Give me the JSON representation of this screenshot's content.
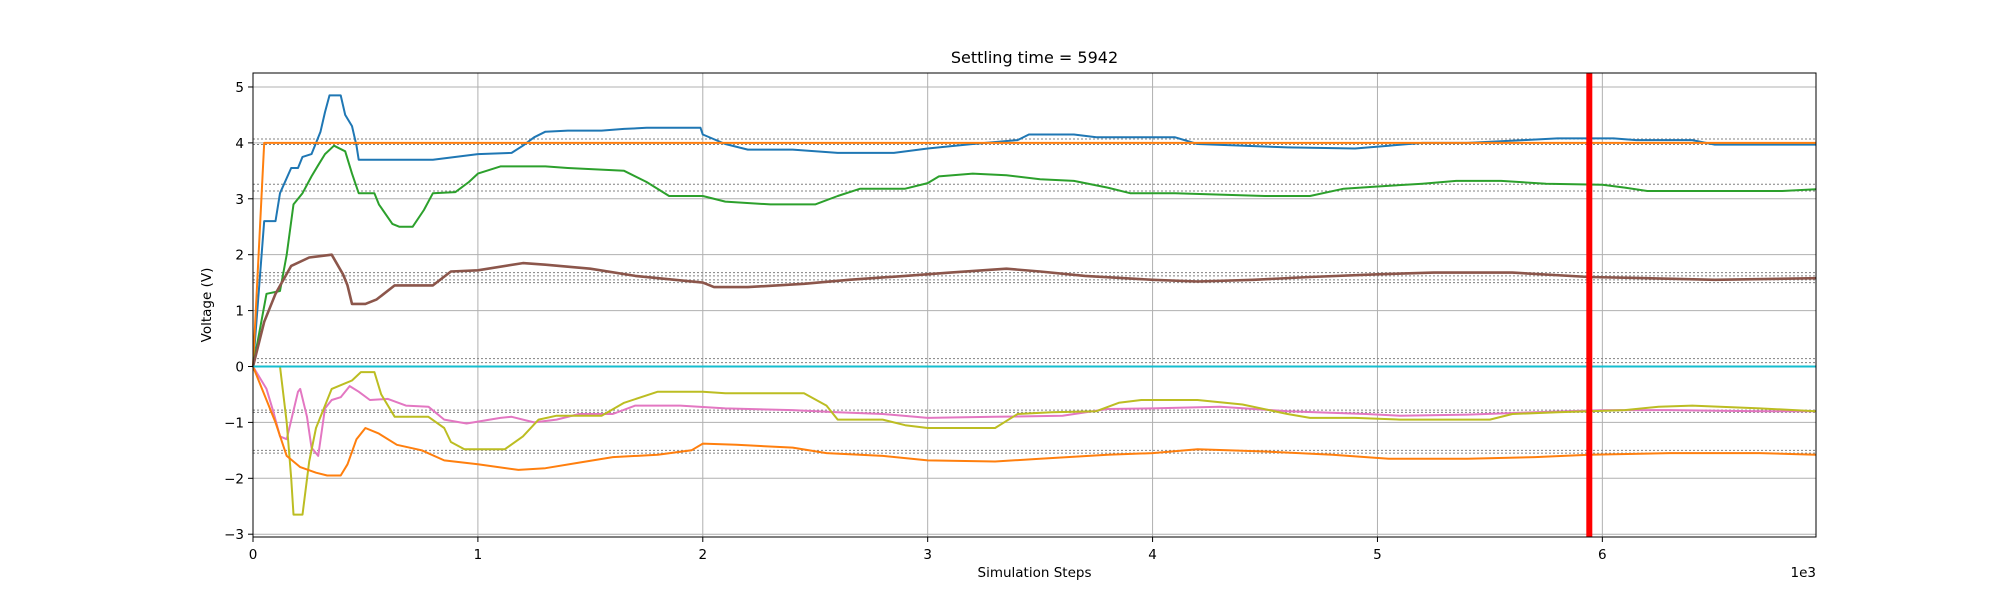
{
  "chart_data": {
    "type": "line",
    "title": "Settling time = 5942",
    "xlabel": "Simulation Steps",
    "ylabel": "Voltage (V)",
    "x_offset_text": "1e3",
    "xlim": [
      0,
      6950
    ],
    "ylim": [
      -3.05,
      5.25
    ],
    "xticks": [
      0,
      1000,
      2000,
      3000,
      4000,
      5000,
      6000
    ],
    "xtick_labels": [
      "0",
      "1",
      "2",
      "3",
      "4",
      "5",
      "6"
    ],
    "yticks": [
      -3,
      -2,
      -1,
      0,
      1,
      2,
      3,
      4,
      5
    ],
    "ytick_labels": [
      "−3",
      "−2",
      "−1",
      "0",
      "1",
      "2",
      "3",
      "4",
      "5"
    ],
    "grid": true,
    "settling_marker": {
      "x": 5942,
      "color": "#ff0000"
    },
    "reference_levels": [
      4.07,
      3.97,
      3.26,
      3.14,
      1.68,
      1.62,
      1.55,
      1.5,
      0.14,
      0.07,
      -0.78,
      -0.82,
      -1.5,
      -1.55
    ],
    "colors": {
      "blue": "#1f77b4",
      "orange": "#ff7f0e",
      "green": "#2ca02c",
      "brown": "#8c564b",
      "pink": "#e377c2",
      "olive": "#bcbd22",
      "cyan": "#17becf",
      "grid": "#b0b0b0",
      "ref": "#808080"
    },
    "series": [
      {
        "color": "#1f77b4",
        "points": [
          [
            0,
            0
          ],
          [
            50,
            2.6
          ],
          [
            100,
            2.6
          ],
          [
            120,
            3.1
          ],
          [
            170,
            3.55
          ],
          [
            200,
            3.55
          ],
          [
            220,
            3.75
          ],
          [
            260,
            3.8
          ],
          [
            300,
            4.2
          ],
          [
            320,
            4.55
          ],
          [
            340,
            4.85
          ],
          [
            390,
            4.85
          ],
          [
            410,
            4.5
          ],
          [
            440,
            4.3
          ],
          [
            460,
            3.95
          ],
          [
            470,
            3.7
          ],
          [
            800,
            3.7
          ],
          [
            1000,
            3.8
          ],
          [
            1150,
            3.82
          ],
          [
            1200,
            3.95
          ],
          [
            1250,
            4.1
          ],
          [
            1300,
            4.2
          ],
          [
            1400,
            4.22
          ],
          [
            1550,
            4.22
          ],
          [
            1650,
            4.25
          ],
          [
            1750,
            4.27
          ],
          [
            1990,
            4.27
          ],
          [
            2000,
            4.15
          ],
          [
            2100,
            3.98
          ],
          [
            2200,
            3.88
          ],
          [
            2400,
            3.88
          ],
          [
            2600,
            3.82
          ],
          [
            2850,
            3.82
          ],
          [
            3000,
            3.9
          ],
          [
            3200,
            3.98
          ],
          [
            3400,
            4.05
          ],
          [
            3450,
            4.15
          ],
          [
            3650,
            4.15
          ],
          [
            3750,
            4.1
          ],
          [
            4100,
            4.1
          ],
          [
            4200,
            3.98
          ],
          [
            4600,
            3.92
          ],
          [
            4900,
            3.9
          ],
          [
            5050,
            3.95
          ],
          [
            5200,
            4.0
          ],
          [
            5400,
            4.0
          ],
          [
            5650,
            4.05
          ],
          [
            5800,
            4.08
          ],
          [
            6050,
            4.08
          ],
          [
            6150,
            4.05
          ],
          [
            6400,
            4.05
          ],
          [
            6500,
            3.97
          ],
          [
            6950,
            3.97
          ]
        ]
      },
      {
        "color": "#ff7f0e",
        "points": [
          [
            0,
            0
          ],
          [
            50,
            4.0
          ],
          [
            6950,
            4.0
          ]
        ]
      },
      {
        "color": "#2ca02c",
        "points": [
          [
            0,
            0
          ],
          [
            60,
            1.3
          ],
          [
            120,
            1.35
          ],
          [
            150,
            2.0
          ],
          [
            180,
            2.9
          ],
          [
            220,
            3.1
          ],
          [
            260,
            3.4
          ],
          [
            290,
            3.6
          ],
          [
            320,
            3.8
          ],
          [
            360,
            3.95
          ],
          [
            410,
            3.85
          ],
          [
            440,
            3.45
          ],
          [
            470,
            3.1
          ],
          [
            540,
            3.1
          ],
          [
            560,
            2.9
          ],
          [
            620,
            2.55
          ],
          [
            650,
            2.5
          ],
          [
            710,
            2.5
          ],
          [
            760,
            2.8
          ],
          [
            800,
            3.1
          ],
          [
            900,
            3.12
          ],
          [
            960,
            3.3
          ],
          [
            1000,
            3.45
          ],
          [
            1100,
            3.58
          ],
          [
            1300,
            3.58
          ],
          [
            1400,
            3.55
          ],
          [
            1650,
            3.5
          ],
          [
            1750,
            3.3
          ],
          [
            1850,
            3.05
          ],
          [
            2000,
            3.05
          ],
          [
            2100,
            2.95
          ],
          [
            2300,
            2.9
          ],
          [
            2500,
            2.9
          ],
          [
            2600,
            3.05
          ],
          [
            2700,
            3.18
          ],
          [
            2900,
            3.18
          ],
          [
            3000,
            3.28
          ],
          [
            3050,
            3.4
          ],
          [
            3200,
            3.45
          ],
          [
            3350,
            3.42
          ],
          [
            3500,
            3.35
          ],
          [
            3650,
            3.32
          ],
          [
            3800,
            3.2
          ],
          [
            3900,
            3.1
          ],
          [
            4100,
            3.1
          ],
          [
            4500,
            3.05
          ],
          [
            4700,
            3.05
          ],
          [
            4850,
            3.18
          ],
          [
            5000,
            3.22
          ],
          [
            5200,
            3.27
          ],
          [
            5350,
            3.32
          ],
          [
            5550,
            3.32
          ],
          [
            5750,
            3.27
          ],
          [
            6000,
            3.25
          ],
          [
            6100,
            3.2
          ],
          [
            6200,
            3.14
          ],
          [
            6500,
            3.14
          ],
          [
            6800,
            3.14
          ],
          [
            6950,
            3.17
          ]
        ]
      },
      {
        "color": "#8c564b",
        "points": [
          [
            0,
            0
          ],
          [
            50,
            0.8
          ],
          [
            100,
            1.3
          ],
          [
            170,
            1.8
          ],
          [
            250,
            1.95
          ],
          [
            310,
            1.98
          ],
          [
            350,
            2.0
          ],
          [
            400,
            1.65
          ],
          [
            420,
            1.45
          ],
          [
            440,
            1.12
          ],
          [
            500,
            1.12
          ],
          [
            550,
            1.2
          ],
          [
            630,
            1.45
          ],
          [
            800,
            1.45
          ],
          [
            880,
            1.7
          ],
          [
            1000,
            1.72
          ],
          [
            1200,
            1.85
          ],
          [
            1300,
            1.82
          ],
          [
            1500,
            1.75
          ],
          [
            1700,
            1.62
          ],
          [
            2000,
            1.5
          ],
          [
            2050,
            1.42
          ],
          [
            2200,
            1.42
          ],
          [
            2450,
            1.48
          ],
          [
            2650,
            1.55
          ],
          [
            2900,
            1.62
          ],
          [
            3100,
            1.68
          ],
          [
            3350,
            1.75
          ],
          [
            3500,
            1.7
          ],
          [
            3700,
            1.62
          ],
          [
            4000,
            1.55
          ],
          [
            4200,
            1.52
          ],
          [
            4450,
            1.55
          ],
          [
            4700,
            1.6
          ],
          [
            5000,
            1.65
          ],
          [
            5250,
            1.68
          ],
          [
            5600,
            1.68
          ],
          [
            5942,
            1.6
          ],
          [
            6200,
            1.58
          ],
          [
            6500,
            1.55
          ],
          [
            6950,
            1.58
          ]
        ]
      },
      {
        "color": "#e377c2",
        "points": [
          [
            0,
            0
          ],
          [
            60,
            -0.4
          ],
          [
            90,
            -0.8
          ],
          [
            120,
            -1.25
          ],
          [
            150,
            -1.3
          ],
          [
            200,
            -0.45
          ],
          [
            210,
            -0.4
          ],
          [
            240,
            -0.9
          ],
          [
            260,
            -1.45
          ],
          [
            290,
            -1.6
          ],
          [
            320,
            -0.75
          ],
          [
            350,
            -0.6
          ],
          [
            390,
            -0.55
          ],
          [
            430,
            -0.35
          ],
          [
            470,
            -0.45
          ],
          [
            520,
            -0.6
          ],
          [
            600,
            -0.58
          ],
          [
            680,
            -0.7
          ],
          [
            780,
            -0.72
          ],
          [
            850,
            -0.95
          ],
          [
            950,
            -1.02
          ],
          [
            1100,
            -0.92
          ],
          [
            1150,
            -0.9
          ],
          [
            1250,
            -1.0
          ],
          [
            1350,
            -0.95
          ],
          [
            1450,
            -0.85
          ],
          [
            1600,
            -0.85
          ],
          [
            1700,
            -0.7
          ],
          [
            1900,
            -0.7
          ],
          [
            2100,
            -0.75
          ],
          [
            2400,
            -0.78
          ],
          [
            2600,
            -0.82
          ],
          [
            2800,
            -0.85
          ],
          [
            3000,
            -0.92
          ],
          [
            3300,
            -0.9
          ],
          [
            3600,
            -0.88
          ],
          [
            3800,
            -0.76
          ],
          [
            4000,
            -0.75
          ],
          [
            4300,
            -0.72
          ],
          [
            4600,
            -0.8
          ],
          [
            4950,
            -0.85
          ],
          [
            5100,
            -0.88
          ],
          [
            5400,
            -0.86
          ],
          [
            5700,
            -0.82
          ],
          [
            6000,
            -0.78
          ],
          [
            6300,
            -0.78
          ],
          [
            6700,
            -0.8
          ],
          [
            6950,
            -0.8
          ]
        ]
      },
      {
        "color": "#bcbd22",
        "points": [
          [
            0,
            0
          ],
          [
            120,
            0
          ],
          [
            150,
            -1.0
          ],
          [
            170,
            -2.0
          ],
          [
            180,
            -2.65
          ],
          [
            220,
            -2.65
          ],
          [
            250,
            -1.7
          ],
          [
            280,
            -1.1
          ],
          [
            320,
            -0.7
          ],
          [
            350,
            -0.4
          ],
          [
            410,
            -0.3
          ],
          [
            440,
            -0.25
          ],
          [
            480,
            -0.1
          ],
          [
            540,
            -0.1
          ],
          [
            570,
            -0.5
          ],
          [
            630,
            -0.9
          ],
          [
            780,
            -0.9
          ],
          [
            850,
            -1.1
          ],
          [
            880,
            -1.35
          ],
          [
            940,
            -1.48
          ],
          [
            1120,
            -1.48
          ],
          [
            1200,
            -1.25
          ],
          [
            1270,
            -0.95
          ],
          [
            1350,
            -0.88
          ],
          [
            1550,
            -0.88
          ],
          [
            1650,
            -0.65
          ],
          [
            1800,
            -0.45
          ],
          [
            2000,
            -0.45
          ],
          [
            2100,
            -0.48
          ],
          [
            2450,
            -0.48
          ],
          [
            2550,
            -0.7
          ],
          [
            2600,
            -0.95
          ],
          [
            2800,
            -0.95
          ],
          [
            2900,
            -1.05
          ],
          [
            3000,
            -1.1
          ],
          [
            3300,
            -1.1
          ],
          [
            3400,
            -0.85
          ],
          [
            3550,
            -0.82
          ],
          [
            3750,
            -0.8
          ],
          [
            3850,
            -0.65
          ],
          [
            3950,
            -0.6
          ],
          [
            4200,
            -0.6
          ],
          [
            4400,
            -0.68
          ],
          [
            4600,
            -0.85
          ],
          [
            4700,
            -0.92
          ],
          [
            4900,
            -0.92
          ],
          [
            5100,
            -0.95
          ],
          [
            5500,
            -0.95
          ],
          [
            5600,
            -0.85
          ],
          [
            5800,
            -0.82
          ],
          [
            6100,
            -0.78
          ],
          [
            6250,
            -0.72
          ],
          [
            6400,
            -0.7
          ],
          [
            6700,
            -0.75
          ],
          [
            6950,
            -0.8
          ]
        ]
      },
      {
        "color": "#ff7f0e",
        "points": [
          [
            0,
            0
          ],
          [
            60,
            -0.6
          ],
          [
            100,
            -1.0
          ],
          [
            150,
            -1.6
          ],
          [
            210,
            -1.8
          ],
          [
            280,
            -1.9
          ],
          [
            330,
            -1.95
          ],
          [
            390,
            -1.95
          ],
          [
            420,
            -1.75
          ],
          [
            460,
            -1.3
          ],
          [
            500,
            -1.1
          ],
          [
            560,
            -1.2
          ],
          [
            640,
            -1.4
          ],
          [
            750,
            -1.5
          ],
          [
            850,
            -1.68
          ],
          [
            1000,
            -1.75
          ],
          [
            1180,
            -1.85
          ],
          [
            1300,
            -1.82
          ],
          [
            1450,
            -1.72
          ],
          [
            1600,
            -1.62
          ],
          [
            1800,
            -1.58
          ],
          [
            1950,
            -1.5
          ],
          [
            2000,
            -1.38
          ],
          [
            2150,
            -1.4
          ],
          [
            2400,
            -1.45
          ],
          [
            2550,
            -1.55
          ],
          [
            2800,
            -1.6
          ],
          [
            3000,
            -1.68
          ],
          [
            3300,
            -1.7
          ],
          [
            3500,
            -1.65
          ],
          [
            3800,
            -1.58
          ],
          [
            4000,
            -1.55
          ],
          [
            4200,
            -1.48
          ],
          [
            4500,
            -1.52
          ],
          [
            4800,
            -1.58
          ],
          [
            5050,
            -1.65
          ],
          [
            5400,
            -1.65
          ],
          [
            5700,
            -1.62
          ],
          [
            5942,
            -1.58
          ],
          [
            6300,
            -1.55
          ],
          [
            6700,
            -1.55
          ],
          [
            6950,
            -1.58
          ]
        ]
      },
      {
        "color": "#17becf",
        "points": [
          [
            0,
            0
          ],
          [
            6950,
            0
          ]
        ]
      }
    ]
  }
}
